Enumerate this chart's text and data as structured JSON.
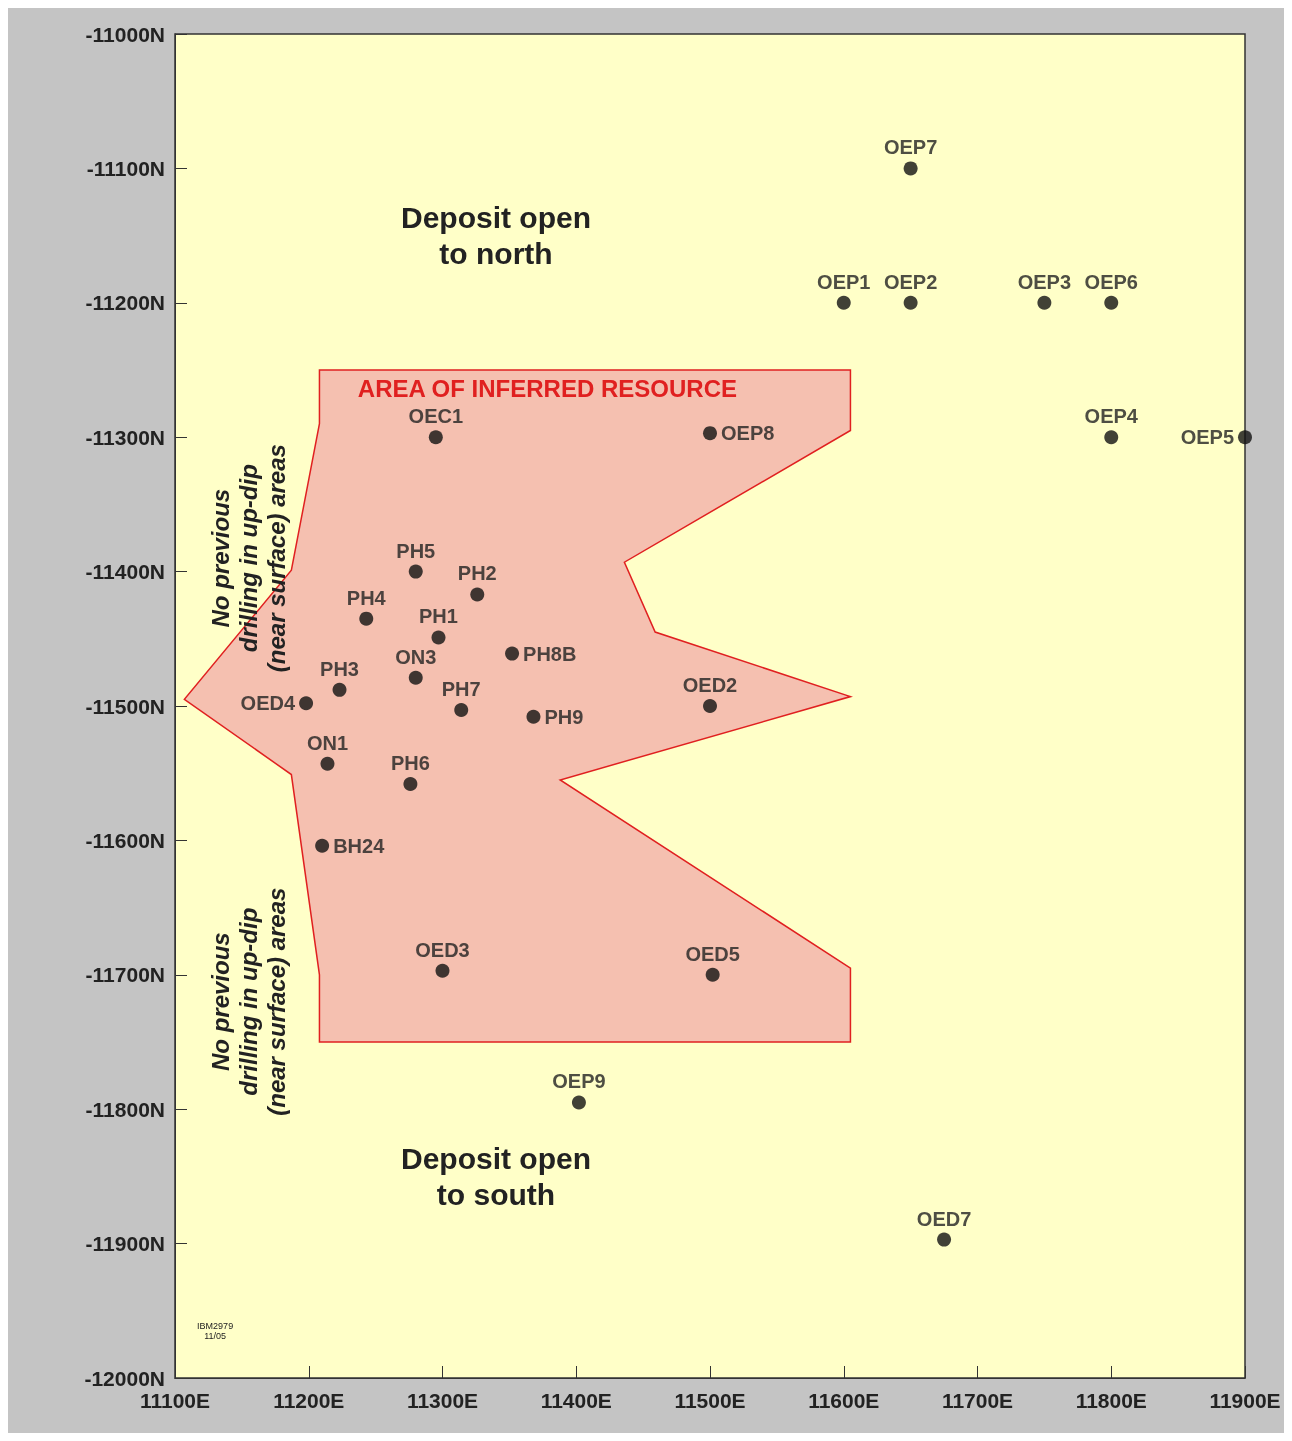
{
  "chart_data": {
    "type": "scatter",
    "xlim": [
      11100,
      11900
    ],
    "xticks": [
      {
        "value": 11100,
        "label": "11100E"
      },
      {
        "value": 11200,
        "label": "11200E"
      },
      {
        "value": 11300,
        "label": "11300E"
      },
      {
        "value": 11400,
        "label": "11400E"
      },
      {
        "value": 11500,
        "label": "11500E"
      },
      {
        "value": 11600,
        "label": "11600E"
      },
      {
        "value": 11700,
        "label": "11700E"
      },
      {
        "value": 11800,
        "label": "11800E"
      },
      {
        "value": 11900,
        "label": "11900E"
      }
    ],
    "ylim": [
      -12000,
      -11000
    ],
    "yticks": [
      {
        "value": -12000,
        "label": "-12000N"
      },
      {
        "value": -11900,
        "label": "-11900N"
      },
      {
        "value": -11800,
        "label": "-11800N"
      },
      {
        "value": -11700,
        "label": "-11700N"
      },
      {
        "value": -11600,
        "label": "-11600N"
      },
      {
        "value": -11500,
        "label": "-11500N"
      },
      {
        "value": -11400,
        "label": "-11400N"
      },
      {
        "value": -11300,
        "label": "-11300N"
      },
      {
        "value": -11200,
        "label": "-11200N"
      },
      {
        "value": -11100,
        "label": "-11100N"
      },
      {
        "value": -11000,
        "label": "-11000N"
      }
    ],
    "grid": false,
    "legend": false,
    "series": [
      {
        "type": "area",
        "name": "AREA OF INFERRED RESOURCE",
        "color": "#f5c0b0",
        "x": [
          11208,
          11605,
          11605,
          11436,
          11459,
          11605,
          11388,
          11605,
          11605,
          11208,
          11208,
          11187,
          11107,
          11187,
          11208
        ],
        "values": [
          -11250,
          -11250,
          -11295,
          -11393,
          -11445,
          -11493,
          -11555,
          -11695,
          -11750,
          -11750,
          -11700,
          -11551,
          -11495,
          -11399,
          -11290
        ]
      },
      {
        "color": "#111111",
        "marker": "circle",
        "x": [
          11650,
          11600,
          11650,
          11750,
          11800,
          11800,
          11900,
          11295,
          11500,
          11280,
          11326,
          11243,
          11297,
          11352,
          11280,
          11223,
          11198,
          11314,
          11368,
          11500,
          11214,
          11276,
          11210,
          11300,
          11502,
          11402,
          11675
        ],
        "values": [
          -11100,
          -11200,
          -11200,
          -11200,
          -11200,
          -11300,
          -11300,
          -11300,
          -11297,
          -11400,
          -11417,
          -11435,
          -11449,
          -11461,
          -11479,
          -11488,
          -11498,
          -11503,
          -11508,
          -11500,
          -11543,
          -11558,
          -11604,
          -11697,
          -11700,
          -11795,
          -11897
        ],
        "value_labels": [
          "OEP7",
          "OEP1",
          "OEP2",
          "OEP3",
          "OEP6",
          "OEP4",
          "OEP5",
          "OEC1",
          "OEP8",
          "PH5",
          "PH2",
          "PH4",
          "PH1",
          "PH8B",
          "ON3",
          "PH3",
          "OED4",
          "PH7",
          "PH9",
          "OED2",
          "ON1",
          "PH6",
          "BH24",
          "OED3",
          "OED5",
          "OEP9",
          "OED7"
        ]
      }
    ],
    "annotations": [
      "Deposit open\nto north",
      "Deposit open\nto south",
      "No previous\ndrilling in up-dip\n(near surface) areas",
      "No previous\ndrilling in up-dip\n(near surface) areas",
      "IBM2979\n11/05"
    ]
  }
}
